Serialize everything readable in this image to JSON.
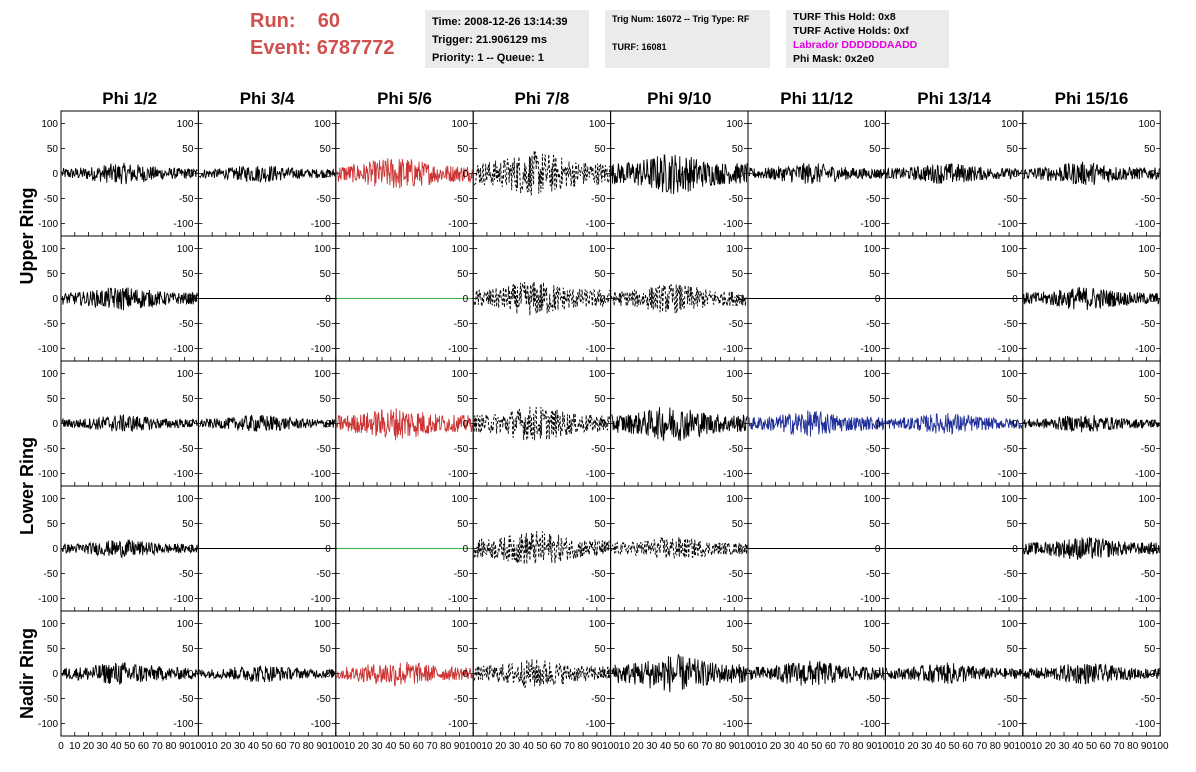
{
  "header": {
    "run_label": "Run:",
    "run_value": "60",
    "event_label": "Event:",
    "event_value": "6787772",
    "time": "Time: 2008-12-26 13:14:39",
    "trigger": "Trigger: 21.906129 ms",
    "priority": "Priority: 1 -- Queue: 1",
    "trig_num": "Trig Num: 16072 -- Trig Type: RF",
    "turf": "TURF: 16081",
    "turf_hold": "TURF This Hold: 0x8",
    "turf_active": "TURF Active Holds: 0xf",
    "labrador": "Labrador DDDDDDAADD",
    "phi_mask": "Phi Mask: 0x2e0"
  },
  "colors": {
    "red": "#cc3333",
    "blue": "#1f2f99",
    "green": "#3cb043",
    "black": "#000000",
    "header_red": "#d0504e",
    "magenta": "#e400e4",
    "info_bg": "#ebebeb"
  },
  "chart_data": {
    "type": "line",
    "columns": [
      "Phi 1/2",
      "Phi 3/4",
      "Phi 5/6",
      "Phi 7/8",
      "Phi 9/10",
      "Phi 11/12",
      "Phi 13/14",
      "Phi 15/16"
    ],
    "rows": [
      "Upper Ring",
      "Lower Ring",
      "Nadir Ring"
    ],
    "xlim": [
      0,
      100
    ],
    "ylim": [
      -125,
      125
    ],
    "x_ticks": [
      0,
      10,
      20,
      30,
      40,
      50,
      60,
      70,
      80,
      90,
      100
    ],
    "y_ticks": [
      -100,
      -50,
      0,
      50,
      100
    ],
    "tick_labels_left": [
      "100",
      "50",
      "0",
      "-50",
      "-100"
    ],
    "tick_labels_right": [
      "100",
      "50",
      "0",
      "-50",
      "-100"
    ],
    "x_tick_labels": [
      "0",
      "10",
      "20",
      "30",
      "40",
      "50",
      "60",
      "70",
      "80",
      "90",
      "100"
    ],
    "panels": [
      [
        {
          "amp": 18,
          "color": "black",
          "style": "solid"
        },
        {
          "amp": 15,
          "color": "black",
          "style": "solid"
        },
        {
          "amp": 28,
          "color": "red",
          "style": "solid"
        },
        {
          "amp": 38,
          "color": "black",
          "style": "dashed"
        },
        {
          "amp": 35,
          "color": "black",
          "style": "solid"
        },
        {
          "amp": 18,
          "color": "black",
          "style": "solid"
        },
        {
          "amp": 18,
          "color": "black",
          "style": "solid"
        },
        {
          "amp": 20,
          "color": "black",
          "style": "solid"
        }
      ],
      [
        {
          "amp": 20,
          "color": "black",
          "style": "solid"
        },
        {
          "amp": 0,
          "color": "black",
          "style": "solid"
        },
        {
          "amp": 0,
          "color": "green",
          "style": "solid"
        },
        {
          "amp": 30,
          "color": "black",
          "style": "dashed"
        },
        {
          "amp": 25,
          "color": "black",
          "style": "dashed"
        },
        {
          "amp": 0,
          "color": "black",
          "style": "solid"
        },
        {
          "amp": 0,
          "color": "black",
          "style": "solid"
        },
        {
          "amp": 20,
          "color": "black",
          "style": "solid"
        }
      ],
      [
        {
          "amp": 15,
          "color": "black",
          "style": "solid"
        },
        {
          "amp": 15,
          "color": "black",
          "style": "solid"
        },
        {
          "amp": 28,
          "color": "red",
          "style": "solid"
        },
        {
          "amp": 30,
          "color": "black",
          "style": "dashed"
        },
        {
          "amp": 30,
          "color": "black",
          "style": "solid"
        },
        {
          "amp": 22,
          "color": "blue",
          "style": "solid"
        },
        {
          "amp": 18,
          "color": "blue",
          "style": "solid"
        },
        {
          "amp": 15,
          "color": "black",
          "style": "solid"
        }
      ],
      [
        {
          "amp": 15,
          "color": "black",
          "style": "solid"
        },
        {
          "amp": 0,
          "color": "black",
          "style": "solid"
        },
        {
          "amp": 0,
          "color": "green",
          "style": "solid"
        },
        {
          "amp": 30,
          "color": "black",
          "style": "dashed"
        },
        {
          "amp": 20,
          "color": "black",
          "style": "dashed"
        },
        {
          "amp": 0,
          "color": "black",
          "style": "solid"
        },
        {
          "amp": 0,
          "color": "black",
          "style": "solid"
        },
        {
          "amp": 20,
          "color": "black",
          "style": "solid"
        }
      ],
      [
        {
          "amp": 20,
          "color": "black",
          "style": "solid"
        },
        {
          "amp": 15,
          "color": "black",
          "style": "solid"
        },
        {
          "amp": 22,
          "color": "red",
          "style": "solid"
        },
        {
          "amp": 25,
          "color": "black",
          "style": "dashed"
        },
        {
          "amp": 32,
          "color": "black",
          "style": "solid"
        },
        {
          "amp": 22,
          "color": "black",
          "style": "solid"
        },
        {
          "amp": 18,
          "color": "black",
          "style": "solid"
        },
        {
          "amp": 18,
          "color": "black",
          "style": "solid"
        }
      ]
    ]
  }
}
